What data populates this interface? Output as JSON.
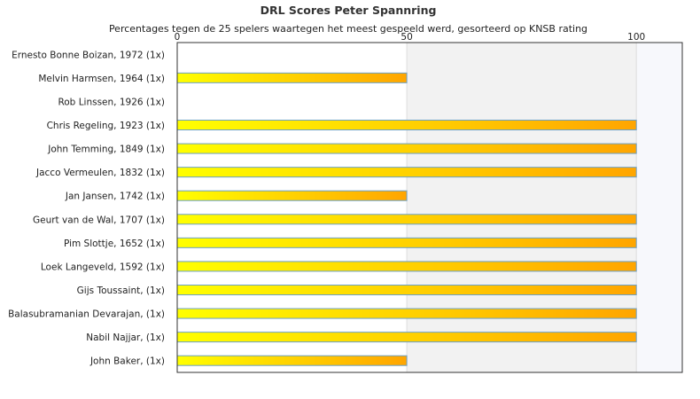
{
  "chart_data": {
    "type": "bar",
    "orientation": "horizontal",
    "title": "DRL Scores Peter Spannring",
    "subtitle": "Percentages tegen de 25 spelers waartegen het meest gespeeld werd, gesorteerd op KNSB rating",
    "xlabel": "",
    "ylabel": "",
    "xlim": [
      0,
      110
    ],
    "x_ticks": [
      0,
      50,
      100
    ],
    "grid": true,
    "legend": "none",
    "categories": [
      "Ernesto Bonne Boizan, 1972 (1x)",
      "Melvin Harmsen, 1964 (1x)",
      "Rob Linssen, 1926 (1x)",
      "Chris Regeling, 1923 (1x)",
      "John Temming, 1849 (1x)",
      "Jacco Vermeulen, 1832 (1x)",
      "Jan Jansen, 1742 (1x)",
      "Geurt van de Wal, 1707 (1x)",
      "Pim Slottje, 1652 (1x)",
      "Loek Langeveld, 1592 (1x)",
      "Gijs Toussaint,  (1x)",
      "Balasubramanian Devarajan,  (1x)",
      "Nabil Najjar,  (1x)",
      "John Baker,  (1x)"
    ],
    "values": [
      0,
      50,
      0,
      100,
      100,
      100,
      50,
      100,
      100,
      100,
      100,
      100,
      100,
      50
    ],
    "colors": {
      "bar_start": "#ffff00",
      "bar_end": "#ffa500",
      "bar_border": "#6aa0c8",
      "band_mid": "#f2f2f2",
      "band_high": "#f7f8fc",
      "plot_border": "#333333"
    }
  }
}
